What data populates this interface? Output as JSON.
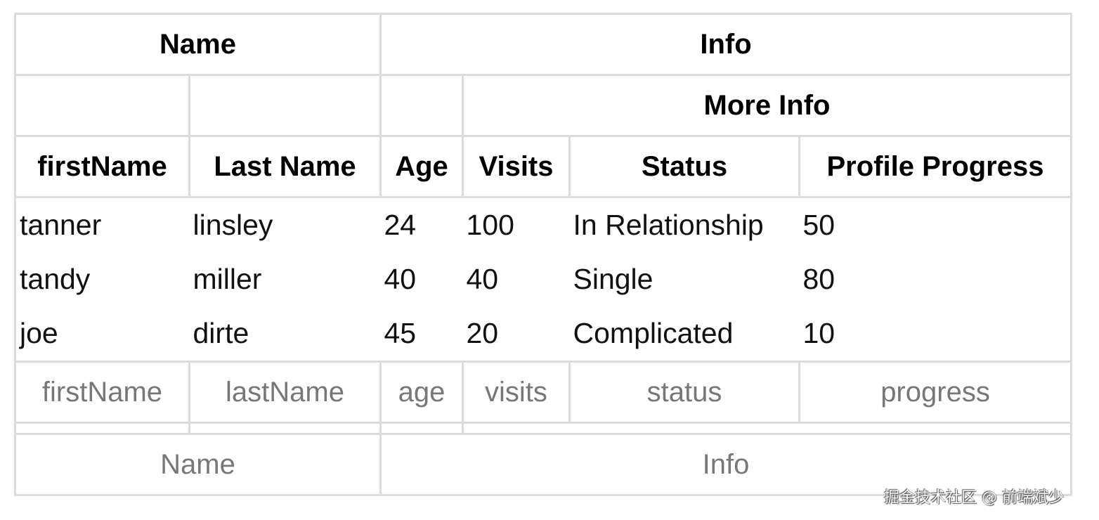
{
  "header": {
    "group_row": [
      "Name",
      "Info"
    ],
    "sub_group_row": [
      "",
      "",
      "",
      "More Info"
    ],
    "columns": [
      "firstName",
      "Last Name",
      "Age",
      "Visits",
      "Status",
      "Profile Progress"
    ]
  },
  "rows": [
    [
      "tanner",
      "linsley",
      "24",
      "100",
      "In Relationship",
      "50"
    ],
    [
      "tandy",
      "miller",
      "40",
      "40",
      "Single",
      "80"
    ],
    [
      "joe",
      "dirte",
      "45",
      "20",
      "Complicated",
      "10"
    ]
  ],
  "footer": {
    "columns": [
      "firstName",
      "lastName",
      "age",
      "visits",
      "status",
      "progress"
    ],
    "sub_group_row": [
      "",
      "",
      "",
      ""
    ],
    "group_row": [
      "Name",
      "Info"
    ]
  },
  "watermark": "掘金技术社区 @ 前端斌少"
}
